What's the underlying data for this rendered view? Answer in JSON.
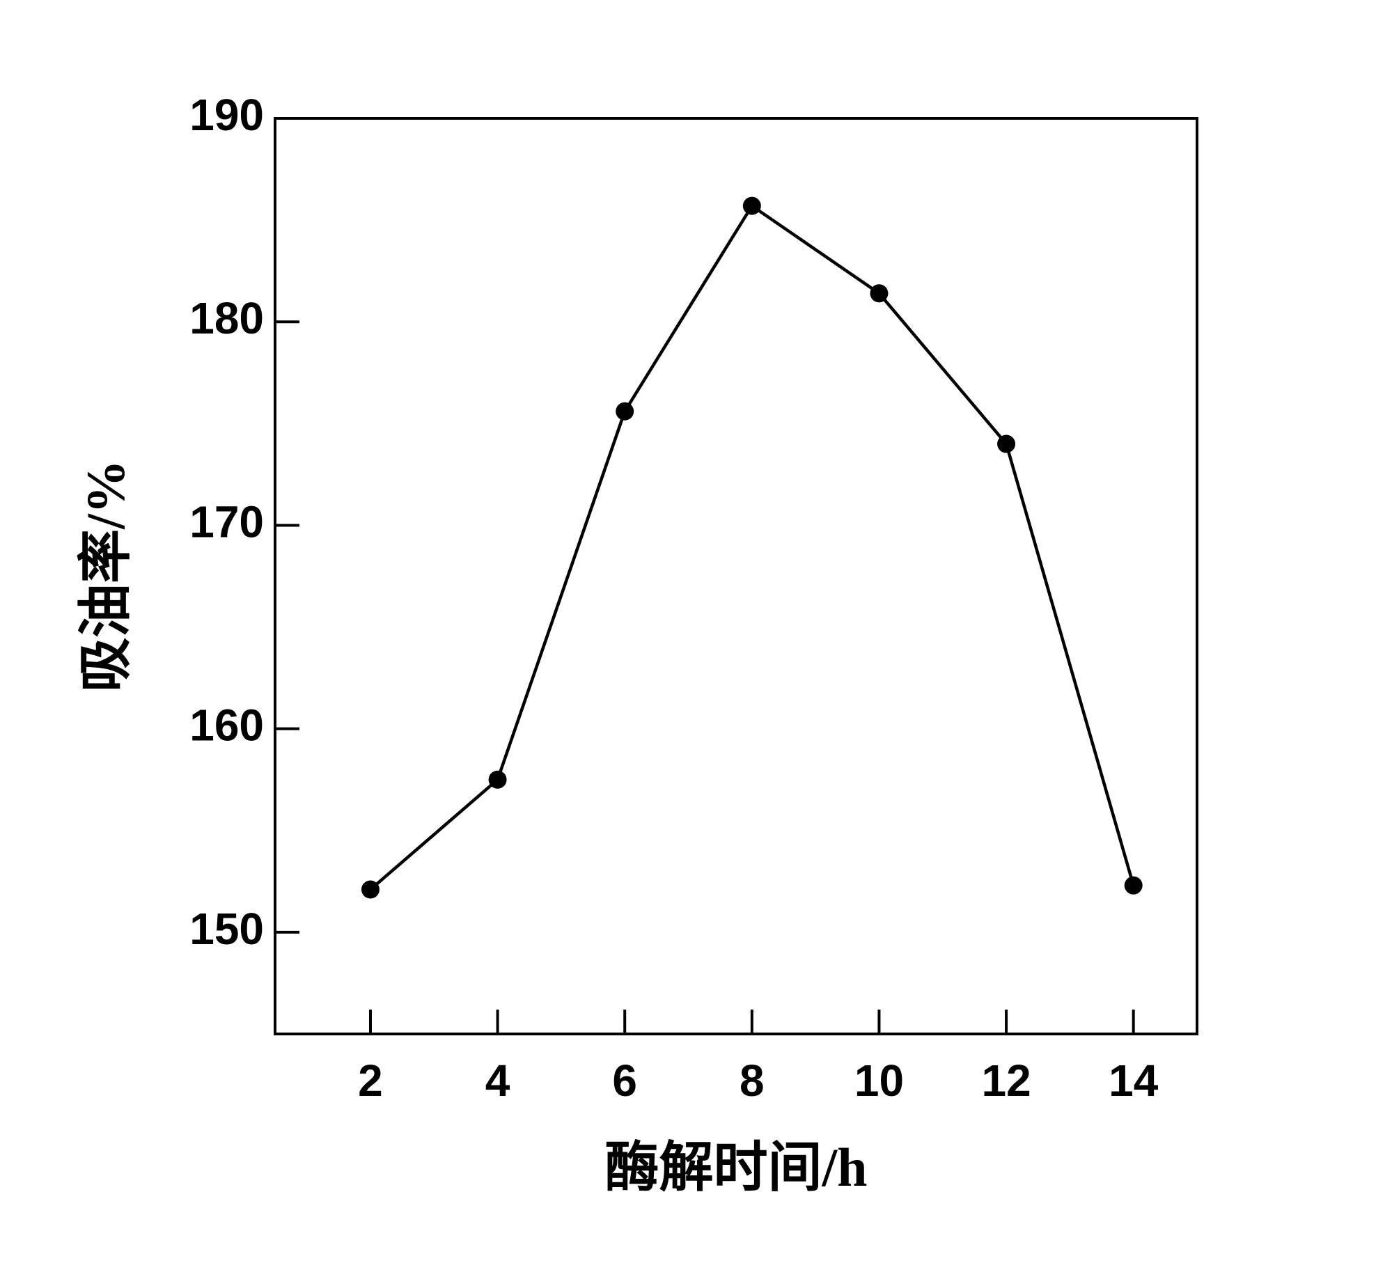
{
  "chart_data": {
    "type": "line",
    "x_label": "酶解时间/h",
    "y_label": "吸油率/%",
    "x": [
      2,
      4,
      6,
      8,
      10,
      12,
      14
    ],
    "series": [
      {
        "color": "#000000",
        "values": [
          152.1,
          157.5,
          175.6,
          185.7,
          181.4,
          174.0,
          152.3
        ]
      }
    ],
    "xlim": [
      0.5,
      15
    ],
    "xticks": [
      2,
      4,
      6,
      8,
      10,
      12,
      14
    ],
    "ylim": [
      145,
      190
    ],
    "yticks": [
      150,
      160,
      170,
      180,
      190
    ]
  }
}
